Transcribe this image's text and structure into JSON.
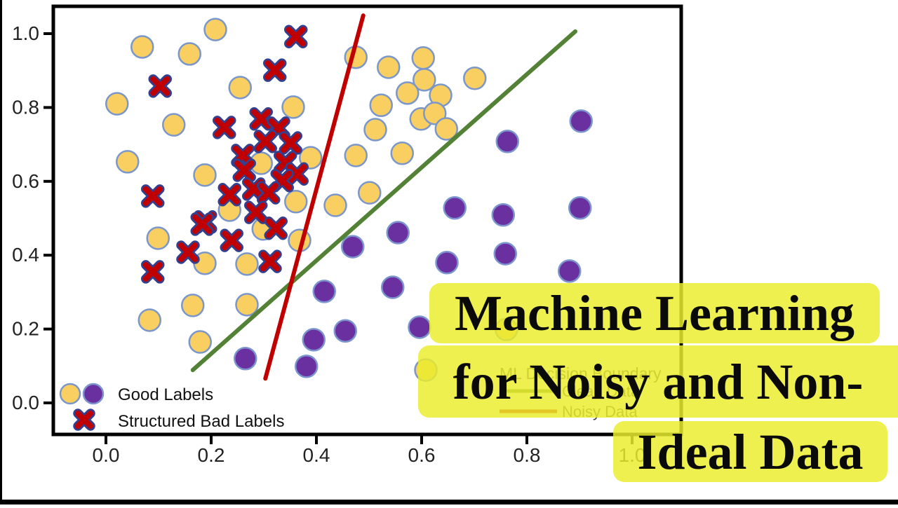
{
  "page": {
    "background": "#ffffff",
    "letterbox_color": "#000000"
  },
  "overlay": {
    "title_lines": [
      "Machine Learning",
      "for Noisy and Non-",
      "Ideal Data"
    ],
    "highlight_color": "rgba(233,237,44,0.84)",
    "text_color": "#0a0a0a"
  },
  "chart_data": {
    "type": "scatter",
    "title": "",
    "xlabel": "",
    "ylabel": "",
    "xlim": [
      -0.1,
      1.09
    ],
    "ylim": [
      -0.085,
      1.074
    ],
    "grid": false,
    "axes": {
      "tick_values": [
        0.0,
        0.2,
        0.4,
        0.6,
        0.8,
        1.0
      ],
      "x_tick_labels": [
        "0.0",
        "0.2",
        "0.4",
        "0.6",
        "0.8",
        "1.0"
      ],
      "y_tick_labels": [
        "0.0",
        "0.2",
        "0.4",
        "0.6",
        "0.8",
        "1.0"
      ],
      "tick_label_color": "#222222",
      "frame_color": "#000000"
    },
    "series": [
      {
        "name": "Good Labels (yellow class)",
        "marker": "circle",
        "fill": "#F9CF62",
        "edge": "#7B97C9",
        "points": [
          [
            0.069,
            0.964
          ],
          [
            0.159,
            0.945
          ],
          [
            0.208,
            1.011
          ],
          [
            0.021,
            0.81
          ],
          [
            0.129,
            0.753
          ],
          [
            0.255,
            0.854
          ],
          [
            0.356,
            0.801
          ],
          [
            0.041,
            0.653
          ],
          [
            0.188,
            0.617
          ],
          [
            0.295,
            0.649
          ],
          [
            0.389,
            0.664
          ],
          [
            0.361,
            0.545
          ],
          [
            0.235,
            0.522
          ],
          [
            0.299,
            0.471
          ],
          [
            0.368,
            0.44
          ],
          [
            0.436,
            0.535
          ],
          [
            0.099,
            0.446
          ],
          [
            0.188,
            0.378
          ],
          [
            0.268,
            0.376
          ],
          [
            0.165,
            0.264
          ],
          [
            0.268,
            0.266
          ],
          [
            0.083,
            0.224
          ],
          [
            0.179,
            0.165
          ],
          [
            0.475,
            0.936
          ],
          [
            0.537,
            0.909
          ],
          [
            0.603,
            0.934
          ],
          [
            0.605,
            0.875
          ],
          [
            0.573,
            0.839
          ],
          [
            0.636,
            0.833
          ],
          [
            0.701,
            0.879
          ],
          [
            0.523,
            0.806
          ],
          [
            0.599,
            0.769
          ],
          [
            0.625,
            0.784
          ],
          [
            0.512,
            0.74
          ],
          [
            0.647,
            0.742
          ],
          [
            0.475,
            0.67
          ],
          [
            0.563,
            0.676
          ],
          [
            0.501,
            0.569
          ],
          [
            0.608,
            0.089
          ],
          [
            0.761,
            0.199
          ]
        ]
      },
      {
        "name": "Good Labels (purple class)",
        "marker": "circle",
        "fill": "#6B30A0",
        "edge": "#7C95CF",
        "points": [
          [
            0.763,
            0.708
          ],
          [
            0.903,
            0.763
          ],
          [
            0.663,
            0.528
          ],
          [
            0.755,
            0.509
          ],
          [
            0.901,
            0.528
          ],
          [
            0.555,
            0.461
          ],
          [
            0.469,
            0.423
          ],
          [
            0.759,
            0.404
          ],
          [
            0.648,
            0.38
          ],
          [
            0.881,
            0.357
          ],
          [
            0.415,
            0.302
          ],
          [
            0.545,
            0.313
          ],
          [
            0.395,
            0.171
          ],
          [
            0.455,
            0.195
          ],
          [
            0.265,
            0.12
          ],
          [
            0.381,
            0.099
          ],
          [
            0.596,
            0.205
          ]
        ]
      },
      {
        "name": "Structured Bad Labels",
        "marker": "x",
        "fill": "#C00000",
        "edge": "#32408F",
        "points": [
          [
            0.361,
            0.992
          ],
          [
            0.321,
            0.901
          ],
          [
            0.103,
            0.858
          ],
          [
            0.225,
            0.746
          ],
          [
            0.295,
            0.769
          ],
          [
            0.328,
            0.744
          ],
          [
            0.303,
            0.708
          ],
          [
            0.351,
            0.704
          ],
          [
            0.26,
            0.67
          ],
          [
            0.341,
            0.651
          ],
          [
            0.263,
            0.63
          ],
          [
            0.363,
            0.62
          ],
          [
            0.335,
            0.602
          ],
          [
            0.281,
            0.579
          ],
          [
            0.309,
            0.569
          ],
          [
            0.235,
            0.564
          ],
          [
            0.285,
            0.516
          ],
          [
            0.189,
            0.49
          ],
          [
            0.323,
            0.473
          ],
          [
            0.239,
            0.44
          ],
          [
            0.089,
            0.56
          ],
          [
            0.183,
            0.484
          ],
          [
            0.156,
            0.408
          ],
          [
            0.089,
            0.355
          ],
          [
            0.312,
            0.383
          ]
        ]
      }
    ],
    "lines": [
      {
        "name": "Clean Data",
        "color": "#538135",
        "width": 6,
        "from": [
          0.165,
          0.089
        ],
        "to": [
          0.892,
          1.006
        ]
      },
      {
        "name": "Noisy Data",
        "color": "#C00000",
        "width": 6,
        "from": [
          0.303,
          0.066
        ],
        "to": [
          0.489,
          1.049
        ]
      }
    ],
    "legend_main": {
      "items": [
        {
          "label": "Good Labels",
          "markers": [
            "circle-yellow",
            "circle-purple"
          ]
        },
        {
          "label": "Structured Bad Labels",
          "markers": [
            "x-red"
          ]
        }
      ],
      "text_color": "#111111"
    },
    "legend_right": {
      "title": "ML Decision Boundary",
      "items": [
        {
          "label": "Clean Data",
          "color": "#538135"
        },
        {
          "label": "Noisy Data",
          "color": "#C00000"
        }
      ],
      "text_color": "#3f3f3f"
    }
  }
}
